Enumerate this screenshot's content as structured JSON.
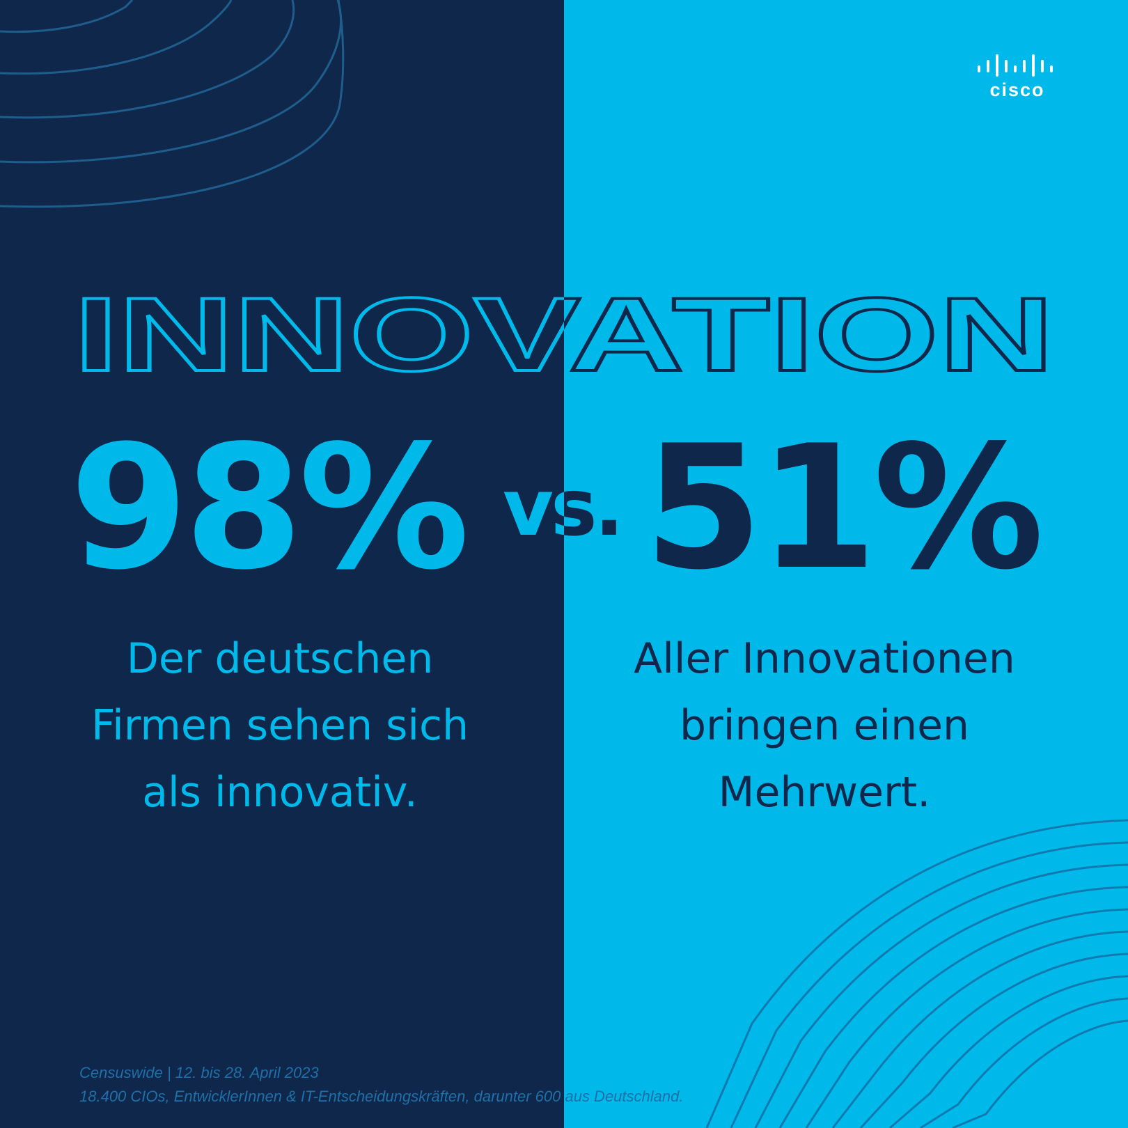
{
  "brand": {
    "logo_text": "cisco",
    "logo_icon": "cisco-bars-icon"
  },
  "headline": "INNOVATION",
  "left": {
    "stat": "98%",
    "description_lines": [
      "Der deutschen",
      "Firmen sehen sich",
      "als innovativ."
    ]
  },
  "vs_label": "vs.",
  "right": {
    "stat": "51%",
    "description_lines": [
      "Aller Innovationen",
      "bringen einen",
      "Mehrwert."
    ]
  },
  "source": {
    "line1": "Censuswide | 12. bis 28. April 2023",
    "line2": "18.400 CIOs, EntwicklerInnen & IT-Entscheidungskräften, darunter 600 aus Deutschland."
  },
  "colors": {
    "navy": "#0f274b",
    "cyan": "#00b9eb",
    "deco_line_left": "#1f5d8c",
    "deco_line_right": "#0f79b0"
  }
}
